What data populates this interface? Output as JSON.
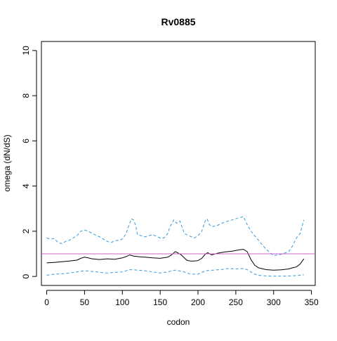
{
  "chart_data": {
    "type": "line",
    "title": "Rv0885",
    "xlabel": "codon",
    "ylabel": "omega (dN/dS)",
    "xlim": [
      -7,
      355
    ],
    "ylim": [
      -0.4,
      10.4
    ],
    "x_ticks": [
      0,
      50,
      100,
      150,
      200,
      250,
      300,
      350
    ],
    "y_ticks": [
      0,
      2,
      4,
      6,
      8,
      10
    ],
    "grid": false,
    "legend": "none",
    "reference_line": {
      "y": 1,
      "color": "#cc66cc"
    },
    "colors": {
      "omega": "#000000",
      "bounds": "#3399dd"
    },
    "series": [
      {
        "role": "omega",
        "style": "solid",
        "x": [
          0,
          10,
          20,
          30,
          40,
          45,
          50,
          55,
          60,
          70,
          80,
          90,
          100,
          105,
          110,
          115,
          120,
          125,
          130,
          140,
          150,
          160,
          165,
          170,
          173,
          178,
          185,
          190,
          195,
          200,
          205,
          210,
          213,
          218,
          225,
          235,
          245,
          255,
          260,
          265,
          270,
          275,
          280,
          290,
          300,
          310,
          320,
          325,
          330,
          335,
          340
        ],
        "y": [
          0.6,
          0.62,
          0.65,
          0.68,
          0.72,
          0.8,
          0.85,
          0.82,
          0.78,
          0.75,
          0.78,
          0.76,
          0.82,
          0.88,
          0.95,
          0.9,
          0.88,
          0.86,
          0.85,
          0.82,
          0.8,
          0.85,
          0.95,
          1.1,
          1.05,
          0.95,
          0.72,
          0.68,
          0.68,
          0.7,
          0.8,
          1.0,
          1.05,
          0.95,
          1.02,
          1.08,
          1.12,
          1.18,
          1.2,
          1.1,
          0.75,
          0.5,
          0.38,
          0.3,
          0.28,
          0.29,
          0.33,
          0.38,
          0.42,
          0.55,
          0.78
        ]
      },
      {
        "role": "upper-bound",
        "style": "dashed",
        "x": [
          0,
          5,
          10,
          15,
          20,
          25,
          30,
          35,
          40,
          45,
          50,
          55,
          60,
          70,
          80,
          85,
          90,
          95,
          100,
          105,
          108,
          112,
          115,
          118,
          120,
          125,
          130,
          140,
          150,
          155,
          160,
          163,
          168,
          172,
          176,
          182,
          188,
          195,
          200,
          205,
          210,
          212,
          215,
          218,
          225,
          235,
          245,
          255,
          260,
          265,
          270,
          280,
          290,
          300,
          310,
          320,
          325,
          330,
          335,
          340
        ],
        "y": [
          1.7,
          1.65,
          1.68,
          1.5,
          1.45,
          1.55,
          1.6,
          1.7,
          1.8,
          2.0,
          2.05,
          2.0,
          1.9,
          1.75,
          1.55,
          1.5,
          1.58,
          1.6,
          1.65,
          1.9,
          2.2,
          2.55,
          2.5,
          2.2,
          1.85,
          1.8,
          1.75,
          1.85,
          1.7,
          1.7,
          1.9,
          2.2,
          2.5,
          2.35,
          2.45,
          1.9,
          1.8,
          1.7,
          1.8,
          2.0,
          2.5,
          2.55,
          2.3,
          2.2,
          2.25,
          2.4,
          2.5,
          2.6,
          2.65,
          2.3,
          2.0,
          1.6,
          1.2,
          0.92,
          0.98,
          1.1,
          1.35,
          1.7,
          1.9,
          2.5
        ]
      },
      {
        "role": "lower-bound",
        "style": "dashed",
        "x": [
          0,
          10,
          20,
          30,
          40,
          50,
          60,
          70,
          80,
          90,
          100,
          110,
          120,
          130,
          140,
          150,
          160,
          170,
          180,
          190,
          200,
          210,
          220,
          230,
          240,
          250,
          260,
          265,
          270,
          275,
          280,
          290,
          300,
          310,
          320,
          330,
          340
        ],
        "y": [
          0.05,
          0.1,
          0.12,
          0.15,
          0.2,
          0.25,
          0.22,
          0.18,
          0.15,
          0.18,
          0.2,
          0.3,
          0.28,
          0.25,
          0.2,
          0.15,
          0.2,
          0.28,
          0.22,
          0.1,
          0.1,
          0.25,
          0.28,
          0.3,
          0.35,
          0.33,
          0.35,
          0.3,
          0.2,
          0.1,
          0.05,
          0.02,
          0.01,
          0.01,
          0.02,
          0.04,
          0.07
        ]
      }
    ]
  }
}
